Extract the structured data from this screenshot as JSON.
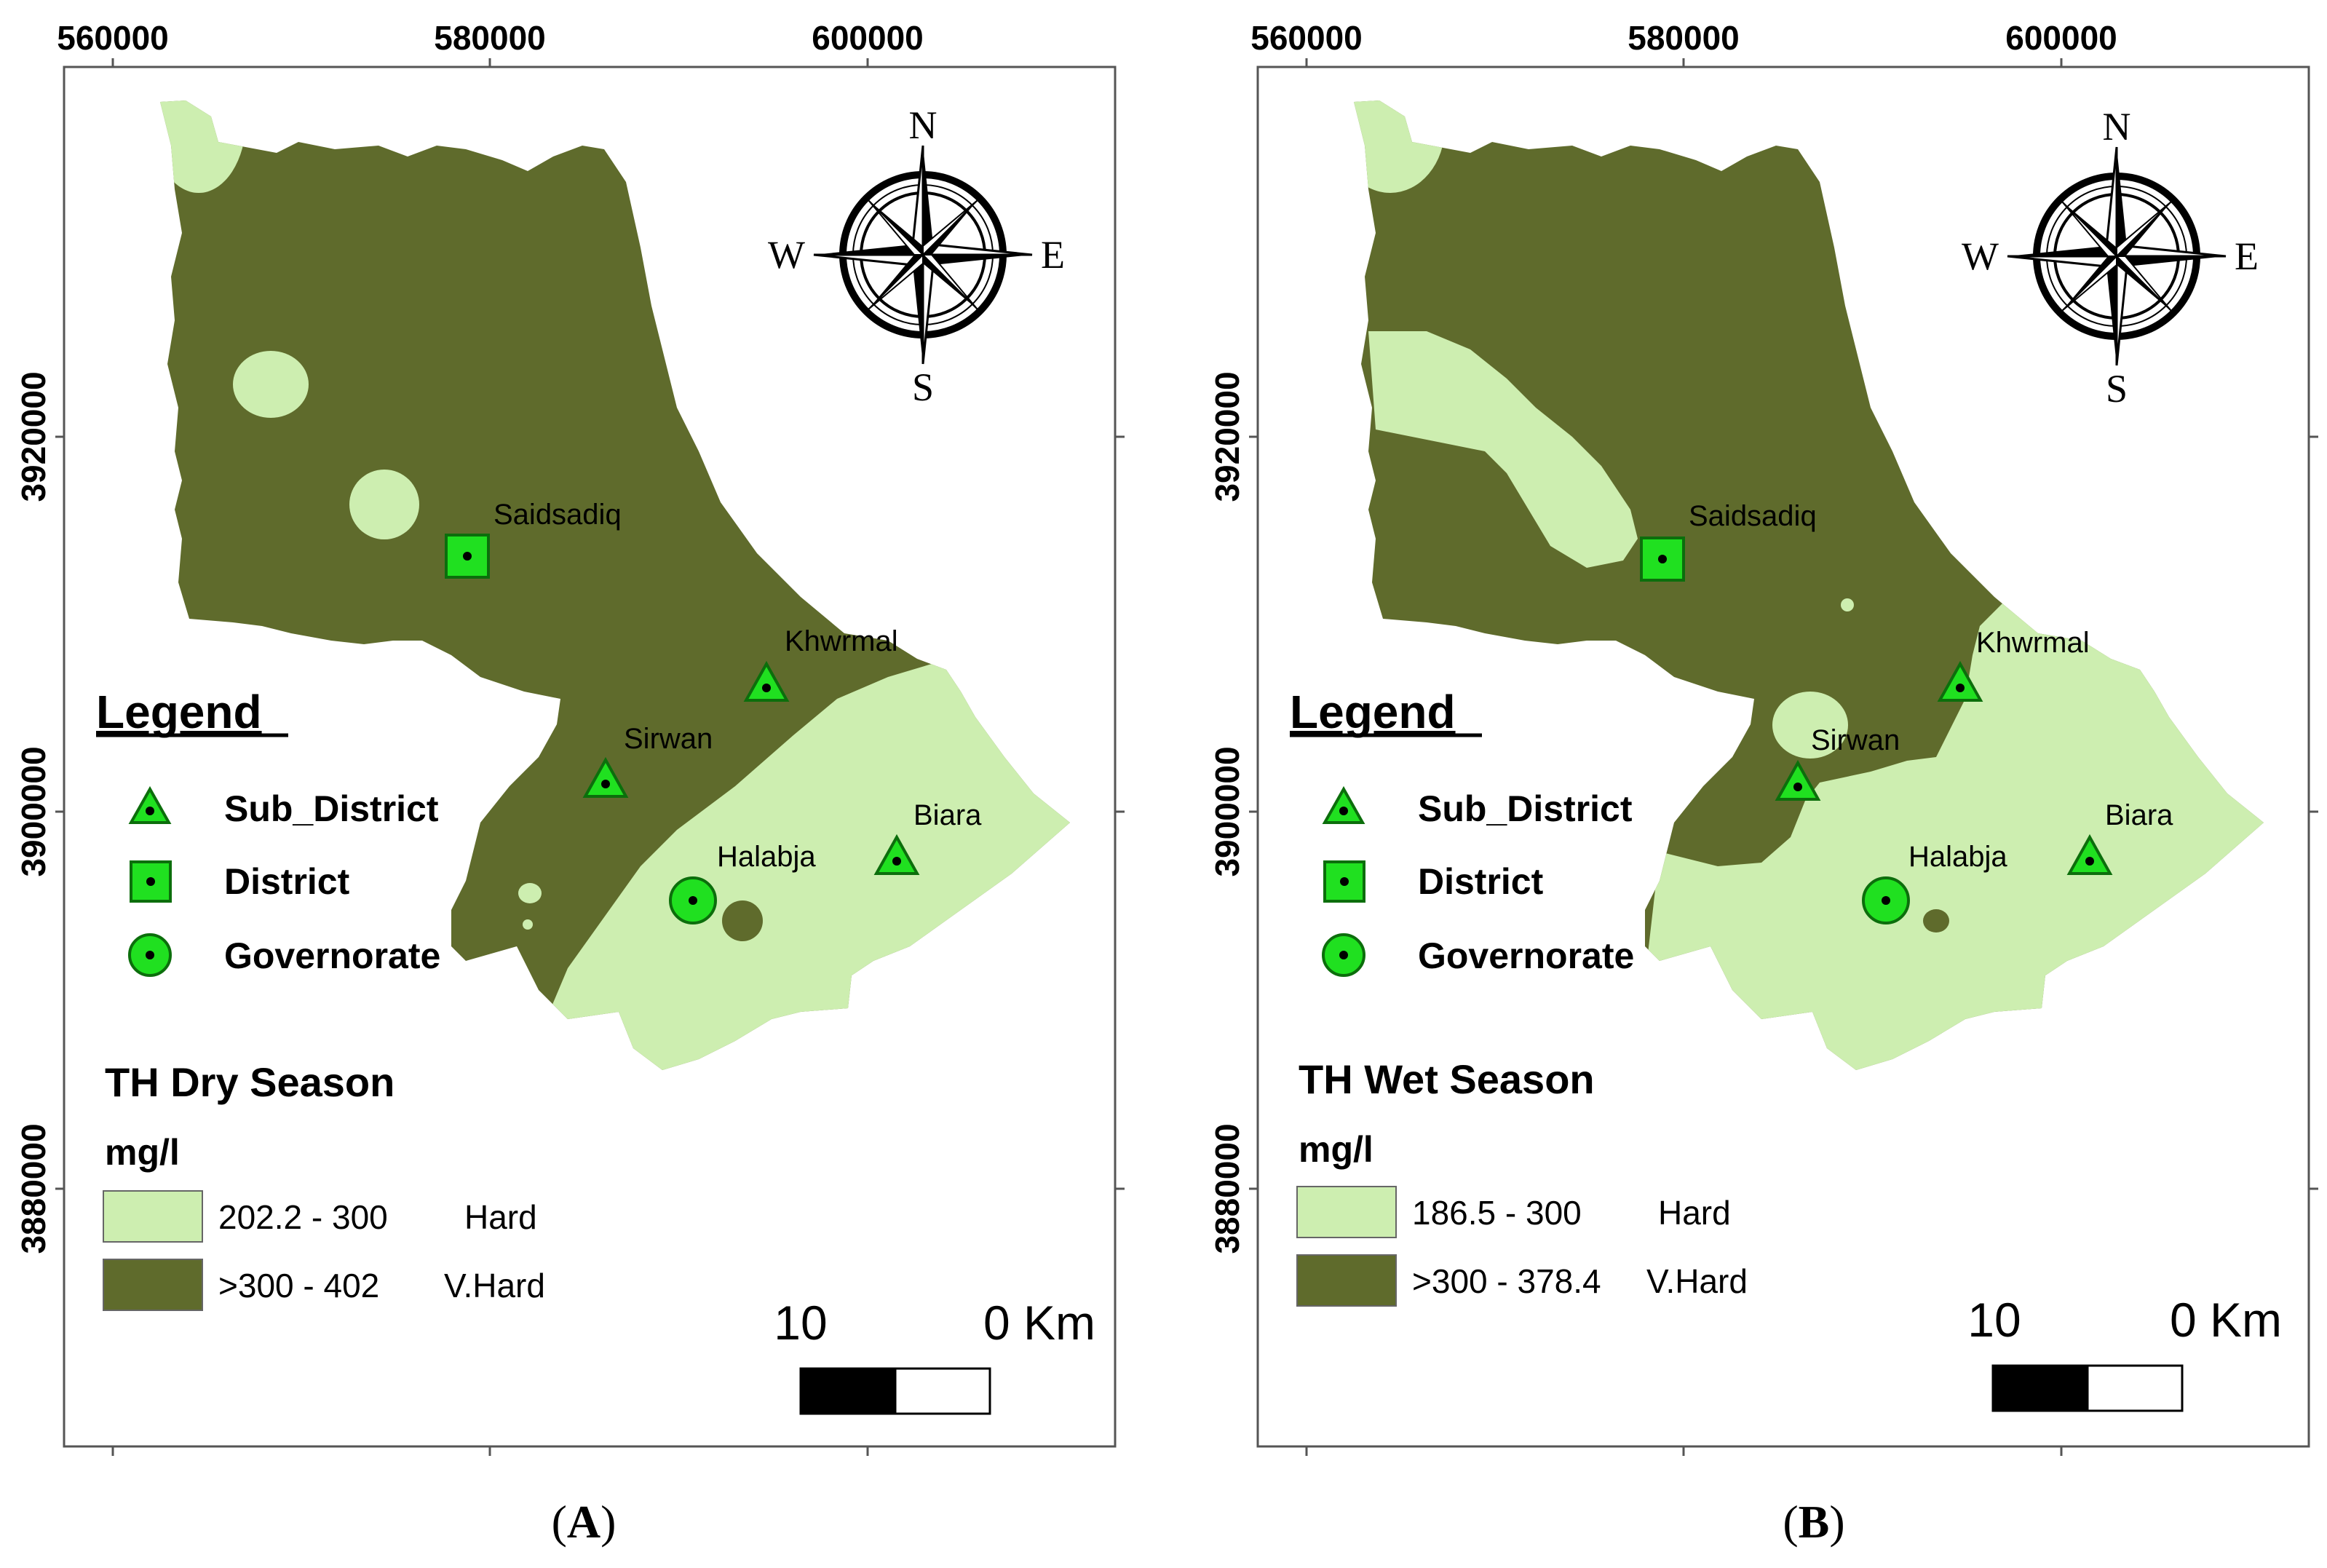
{
  "colors": {
    "hard": "#cdeeb0",
    "very_hard": "#5f6b2c",
    "symbol_fill": "#20e020",
    "frame": "#555555"
  },
  "axes": {
    "x_ticks": [
      "560000",
      "580000",
      "600000"
    ],
    "y_ticks": [
      "3920000",
      "3900000",
      "3880000"
    ]
  },
  "compass": {
    "n": "N",
    "s": "S",
    "e": "E",
    "w": "W"
  },
  "legend": {
    "title": "Legend",
    "items": [
      {
        "label": "Sub_District",
        "icon": "triangle-icon"
      },
      {
        "label": "District",
        "icon": "square-icon"
      },
      {
        "label": "Governorate",
        "icon": "circle-icon"
      }
    ]
  },
  "places": {
    "saidsadiq": "Saidsadiq",
    "khwrmal": "Khwrmal",
    "sirwan": "Sirwan",
    "halabja": "Halabja",
    "biara": "Biara"
  },
  "scalebar": {
    "left": "10",
    "right": "0 Km"
  },
  "panels": [
    {
      "id": "A",
      "panel_label": "A",
      "title": "TH Dry Season",
      "unit": "mg/l",
      "classes": [
        {
          "range": "202.2 - 300",
          "name": "Hard"
        },
        {
          "range": ">300 - 402",
          "name": "V.Hard"
        }
      ]
    },
    {
      "id": "B",
      "panel_label": "B",
      "title": "TH Wet Season",
      "unit": "mg/l",
      "classes": [
        {
          "range": "186.5 - 300",
          "name": "Hard"
        },
        {
          "range": ">300 - 378.4",
          "name": "V.Hard"
        }
      ]
    }
  ]
}
